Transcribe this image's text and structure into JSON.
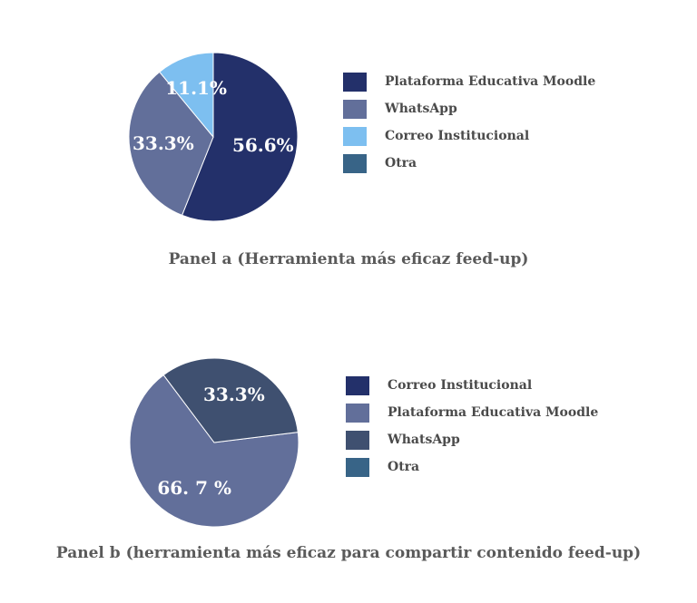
{
  "chart_data": [
    {
      "type": "pie",
      "title": "Panel a (Herramienta más eficaz feed-up)",
      "legend_position": "right",
      "slices": [
        {
          "label": "Plataforma Educativa Moodle",
          "value": 56.6,
          "display": "56.6%",
          "color": "#23306a"
        },
        {
          "label": "WhatsApp",
          "value": 33.3,
          "display": "33.3%",
          "color": "#626f9a"
        },
        {
          "label": "Correo Institucional",
          "value": 11.1,
          "display": "11.1%",
          "color": "#7dbff0"
        },
        {
          "label": "Otra",
          "value": 0,
          "display": "",
          "color": "#386487"
        }
      ],
      "start_angle_deg": 0
    },
    {
      "type": "pie",
      "title": "Panel b (herramienta más eficaz para compartir contenido  feed-up)",
      "legend_position": "right",
      "slices": [
        {
          "label": "Correo Institucional",
          "value": 0,
          "display": "",
          "color": "#23306a"
        },
        {
          "label": "Plataforma Educativa Moodle",
          "value": 66.7,
          "display": "66. 7 %",
          "color": "#626f9a"
        },
        {
          "label": "WhatsApp",
          "value": 33.3,
          "display": "33.3%",
          "color": "#3f5070"
        },
        {
          "label": "Otra",
          "value": 0,
          "display": "",
          "color": "#386487"
        }
      ],
      "start_angle_deg": 83
    }
  ]
}
